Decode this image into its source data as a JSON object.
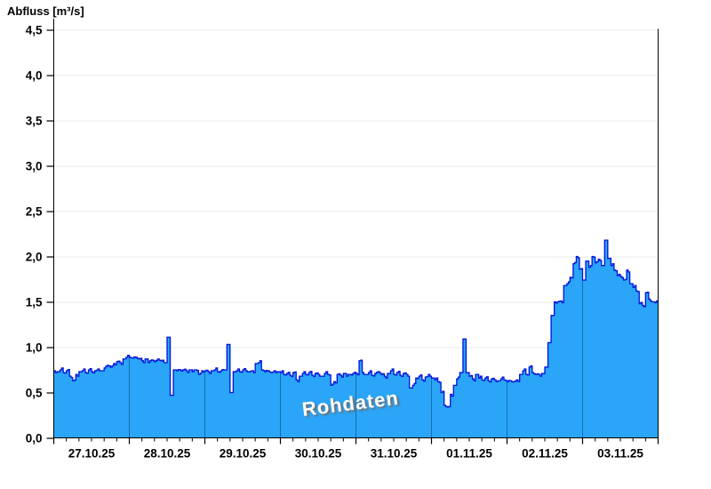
{
  "header": {
    "title": "Abfluss [m³/s]"
  },
  "watermark": {
    "text": "Rohdaten"
  },
  "chart_data": {
    "type": "area",
    "title": "Abfluss [m³/s]",
    "ylabel": "Abfluss [m³/s]",
    "unit": "m³/s",
    "ylim": [
      0,
      4.5
    ],
    "y_tick_step": 0.5,
    "y_tick_labels": [
      "0,0",
      "0,5",
      "1,0",
      "1,5",
      "2,0",
      "2,5",
      "3,0",
      "3,5",
      "4,0",
      "4,5"
    ],
    "x_day_labels": [
      "27.10.25",
      "28.10.25",
      "29.10.25",
      "30.10.25",
      "31.10.25",
      "01.11.25",
      "02.11.25",
      "03.11.25"
    ],
    "x_minor_tick_hours": 4,
    "x_start": "27.10.25 00:00",
    "step_hours": 1,
    "grid": {
      "horizontal": true,
      "vertical_day_lines_in_fill": true
    },
    "legend_position": "none",
    "watermark": "Rohdaten",
    "colors": {
      "fill": "#2aa5f8",
      "line": "#0012d9",
      "grid": "#e9e9e9",
      "day_line": "rgba(0,45,75,0.45)",
      "axis": "#000000",
      "watermark_text": "#ffffff",
      "watermark_shadow": "#6e6e6e"
    },
    "series": [
      {
        "name": "Abfluss (Rohdaten)",
        "values": [
          0.74,
          0.73,
          0.75,
          0.72,
          0.74,
          0.68,
          0.63,
          0.7,
          0.73,
          0.74,
          0.72,
          0.75,
          0.73,
          0.74,
          0.76,
          0.74,
          0.77,
          0.8,
          0.78,
          0.82,
          0.84,
          0.83,
          0.87,
          0.89,
          0.89,
          0.88,
          0.89,
          0.87,
          0.85,
          0.87,
          0.83,
          0.86,
          0.84,
          0.87,
          0.85,
          0.83,
          1.11,
          0.47,
          0.75,
          0.74,
          0.75,
          0.75,
          0.74,
          0.75,
          0.73,
          0.75,
          0.7,
          0.74,
          0.74,
          0.73,
          0.74,
          0.75,
          0.73,
          0.74,
          0.75,
          1.03,
          0.5,
          0.73,
          0.74,
          0.73,
          0.75,
          0.74,
          0.73,
          0.74,
          0.82,
          0.83,
          0.75,
          0.73,
          0.74,
          0.72,
          0.74,
          0.73,
          0.72,
          0.7,
          0.71,
          0.69,
          0.72,
          0.64,
          0.68,
          0.71,
          0.7,
          0.72,
          0.69,
          0.71,
          0.7,
          0.68,
          0.71,
          0.7,
          0.58,
          0.62,
          0.7,
          0.69,
          0.71,
          0.68,
          0.7,
          0.71,
          0.71,
          0.85,
          0.72,
          0.7,
          0.72,
          0.69,
          0.71,
          0.73,
          0.7,
          0.68,
          0.71,
          0.74,
          0.7,
          0.72,
          0.69,
          0.71,
          0.7,
          0.55,
          0.58,
          0.66,
          0.68,
          0.64,
          0.67,
          0.7,
          0.66,
          0.64,
          0.62,
          0.5,
          0.36,
          0.34,
          0.48,
          0.58,
          0.65,
          0.72,
          1.09,
          0.72,
          0.68,
          0.65,
          0.7,
          0.66,
          0.64,
          0.66,
          0.63,
          0.65,
          0.64,
          0.63,
          0.65,
          0.64,
          0.62,
          0.63,
          0.62,
          0.64,
          0.7,
          0.74,
          0.7,
          0.78,
          0.72,
          0.7,
          0.7,
          0.71,
          0.78,
          1.05,
          1.35,
          1.5,
          1.5,
          1.51,
          1.68,
          1.7,
          1.77,
          1.92,
          2.0,
          1.86,
          1.74,
          1.95,
          1.88,
          2.0,
          1.93,
          1.97,
          1.9,
          2.18,
          1.98,
          1.9,
          1.85,
          1.79,
          1.78,
          1.74,
          1.85,
          1.7,
          1.66,
          1.62,
          1.48,
          1.46,
          1.6,
          1.53,
          1.5,
          1.49
        ]
      }
    ]
  }
}
